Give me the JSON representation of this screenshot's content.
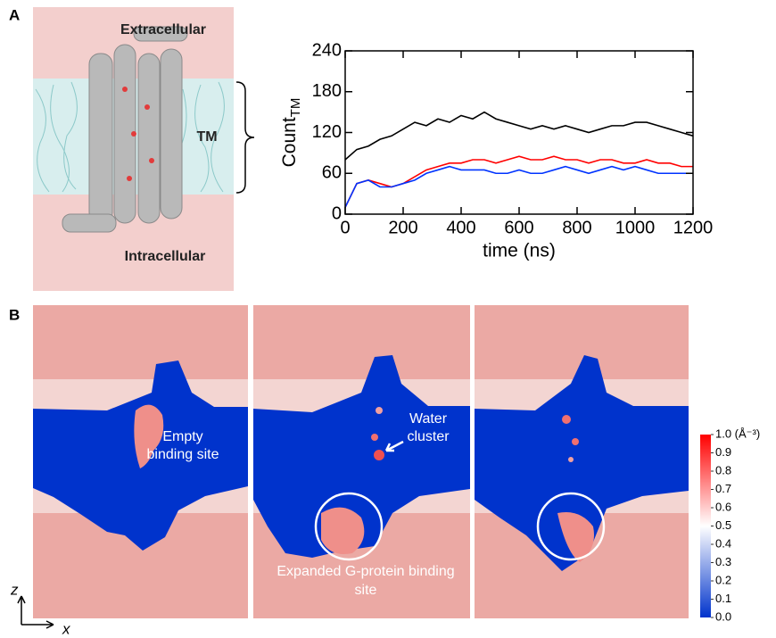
{
  "panel_a": {
    "label": "A",
    "structure_labels": [
      "Extracellular",
      "TM",
      "Intracellular"
    ]
  },
  "chart_data": {
    "type": "line",
    "x_label": "time (ns)",
    "y_label": "Count",
    "y_label_subscript": "TM",
    "x": [
      0,
      40,
      80,
      120,
      160,
      200,
      240,
      280,
      320,
      360,
      400,
      440,
      480,
      520,
      560,
      600,
      640,
      680,
      720,
      760,
      800,
      840,
      880,
      920,
      960,
      1000,
      1040,
      1080,
      1120,
      1160,
      1200
    ],
    "series": [
      {
        "color": "#000000",
        "values": [
          80,
          95,
          100,
          110,
          115,
          125,
          135,
          130,
          140,
          135,
          145,
          140,
          150,
          140,
          135,
          130,
          125,
          130,
          125,
          130,
          125,
          120,
          125,
          130,
          130,
          135,
          135,
          130,
          125,
          120,
          115
        ]
      },
      {
        "color": "#ff0000",
        "values": [
          10,
          45,
          50,
          45,
          40,
          45,
          55,
          65,
          70,
          75,
          75,
          80,
          80,
          75,
          80,
          85,
          80,
          80,
          85,
          80,
          80,
          75,
          80,
          80,
          75,
          75,
          80,
          75,
          75,
          70,
          70
        ]
      },
      {
        "color": "#0033ff",
        "values": [
          10,
          45,
          50,
          40,
          40,
          45,
          50,
          60,
          65,
          70,
          65,
          65,
          65,
          60,
          60,
          65,
          60,
          60,
          65,
          70,
          65,
          60,
          65,
          70,
          65,
          70,
          65,
          60,
          60,
          60,
          60
        ]
      }
    ],
    "xlim": [
      0,
      1200
    ],
    "xticks": [
      0,
      200,
      400,
      600,
      800,
      1000,
      1200
    ],
    "ylim": [
      0,
      240
    ],
    "yticks": [
      0,
      60,
      120,
      180,
      240
    ]
  },
  "panel_b": {
    "label": "B",
    "annotations": [
      "Empty binding site",
      "Water cluster",
      "Expanded G-protein binding site"
    ],
    "axes": [
      "z",
      "x"
    ],
    "colorbar": {
      "lim": [
        0,
        1
      ],
      "colors": [
        "#0033cc",
        "#ffffff",
        "#ff0000"
      ],
      "ticks": [
        {
          "value": 1,
          "label": "1.0 (Å⁻³)"
        },
        0.9,
        0.8,
        0.7,
        0.6,
        0.5,
        0.4,
        0.3,
        0.2,
        0.1,
        {
          "value": 0,
          "label": "0.0"
        }
      ]
    }
  }
}
